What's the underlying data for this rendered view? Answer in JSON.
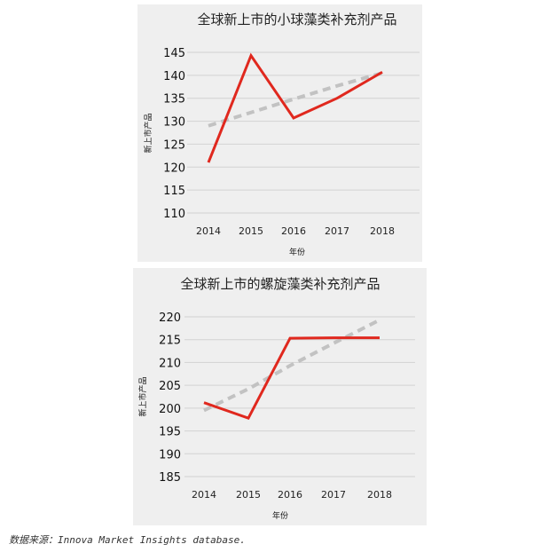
{
  "chart_data": [
    {
      "type": "line",
      "title": "全球新上市的小球藻类补充剂产品",
      "xlabel": "年份",
      "ylabel": "新上市产品",
      "categories": [
        "2014",
        "2015",
        "2016",
        "2017",
        "2018"
      ],
      "yticks": [
        110,
        115,
        120,
        125,
        130,
        135,
        140,
        145
      ],
      "ylim": [
        110,
        145
      ],
      "grid": true,
      "series": [
        {
          "values": [
            121,
            144.3,
            130.7,
            135,
            140.7
          ],
          "color": "#e0281e",
          "style": "solid"
        },
        {
          "values": [
            129,
            131.9,
            134.8,
            137.7,
            140.5
          ],
          "color": "#c2c2c2",
          "style": "dashed",
          "kind": "trendline"
        }
      ]
    },
    {
      "type": "line",
      "title": "全球新上市的螺旋藻类补充剂产品",
      "xlabel": "年份",
      "ylabel": "新上市产品",
      "categories": [
        "2014",
        "2015",
        "2016",
        "2017",
        "2018"
      ],
      "yticks": [
        185,
        190,
        195,
        200,
        205,
        210,
        215,
        220
      ],
      "ylim": [
        185,
        220
      ],
      "grid": true,
      "series": [
        {
          "values": [
            201.2,
            197.8,
            215.3,
            215.4,
            215.4
          ],
          "color": "#e0281e",
          "style": "solid"
        },
        {
          "values": [
            199.5,
            204.2,
            209.3,
            214.2,
            219.3
          ],
          "color": "#c2c2c2",
          "style": "dashed",
          "kind": "trendline"
        }
      ]
    }
  ],
  "source_note": "数据来源：Innova Market Insights database."
}
